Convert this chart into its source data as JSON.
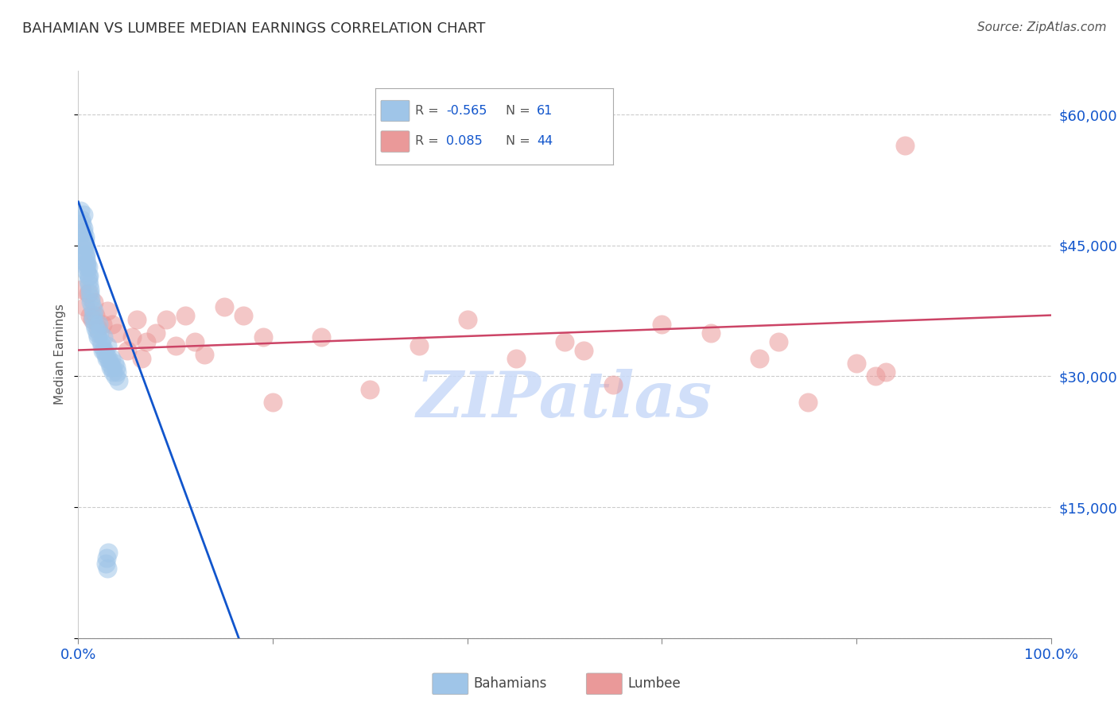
{
  "title": "BAHAMIAN VS LUMBEE MEDIAN EARNINGS CORRELATION CHART",
  "source": "Source: ZipAtlas.com",
  "ylabel": "Median Earnings",
  "x_min": 0.0,
  "x_max": 1.0,
  "y_min": 0,
  "y_max": 65000,
  "yticks": [
    0,
    15000,
    30000,
    45000,
    60000
  ],
  "ytick_labels": [
    "",
    "$15,000",
    "$30,000",
    "$45,000",
    "$60,000"
  ],
  "r_blue": -0.565,
  "n_blue": 61,
  "r_pink": 0.085,
  "n_pink": 44,
  "blue_color": "#9fc5e8",
  "pink_color": "#ea9999",
  "blue_line_color": "#1155cc",
  "pink_line_color": "#cc4466",
  "title_color": "#333333",
  "axis_label_color": "#1155cc",
  "watermark_color": "#c9daf8",
  "watermark": "ZIPatlas",
  "blue_x": [
    0.002,
    0.003,
    0.004,
    0.004,
    0.005,
    0.005,
    0.006,
    0.006,
    0.007,
    0.007,
    0.008,
    0.008,
    0.009,
    0.009,
    0.01,
    0.01,
    0.011,
    0.011,
    0.012,
    0.012,
    0.013,
    0.013,
    0.014,
    0.015,
    0.015,
    0.016,
    0.017,
    0.018,
    0.019,
    0.02,
    0.021,
    0.022,
    0.023,
    0.024,
    0.025,
    0.026,
    0.027,
    0.028,
    0.029,
    0.03,
    0.031,
    0.032,
    0.033,
    0.034,
    0.035,
    0.036,
    0.037,
    0.038,
    0.039,
    0.04,
    0.041,
    0.005,
    0.006,
    0.007,
    0.008,
    0.009,
    0.01,
    0.028,
    0.029,
    0.03,
    0.031
  ],
  "blue_y": [
    49000,
    48000,
    47500,
    46500,
    48500,
    47000,
    45000,
    44500,
    46000,
    45500,
    44000,
    43500,
    42000,
    43000,
    42500,
    41000,
    40500,
    41500,
    40000,
    39500,
    38500,
    39000,
    38000,
    37000,
    36500,
    37500,
    36000,
    35500,
    35000,
    34500,
    36000,
    35000,
    34000,
    33500,
    33000,
    34500,
    33000,
    32500,
    32000,
    33500,
    32000,
    31500,
    31000,
    32000,
    31000,
    30500,
    31500,
    30000,
    31000,
    30500,
    29500,
    46500,
    45000,
    44000,
    43000,
    42500,
    41500,
    8500,
    9200,
    8000,
    9800
  ],
  "pink_x": [
    0.004,
    0.007,
    0.01,
    0.012,
    0.014,
    0.016,
    0.018,
    0.02,
    0.025,
    0.03,
    0.035,
    0.04,
    0.05,
    0.055,
    0.06,
    0.065,
    0.07,
    0.08,
    0.09,
    0.1,
    0.11,
    0.12,
    0.13,
    0.15,
    0.17,
    0.19,
    0.2,
    0.25,
    0.3,
    0.35,
    0.4,
    0.45,
    0.5,
    0.52,
    0.55,
    0.6,
    0.65,
    0.7,
    0.72,
    0.75,
    0.8,
    0.82,
    0.83,
    0.85
  ],
  "pink_y": [
    40000,
    38000,
    39500,
    37000,
    36500,
    38500,
    37000,
    35500,
    36000,
    37500,
    36000,
    35000,
    33000,
    34500,
    36500,
    32000,
    34000,
    35000,
    36500,
    33500,
    37000,
    34000,
    32500,
    38000,
    37000,
    34500,
    27000,
    34500,
    28500,
    33500,
    36500,
    32000,
    34000,
    33000,
    29000,
    36000,
    35000,
    32000,
    34000,
    27000,
    31500,
    30000,
    30500,
    56500
  ],
  "blue_line_x0": 0.0,
  "blue_line_y0": 50000,
  "blue_line_x1": 0.165,
  "blue_line_y1": 0,
  "pink_line_x0": 0.0,
  "pink_line_y0": 33000,
  "pink_line_x1": 1.0,
  "pink_line_y1": 37000
}
